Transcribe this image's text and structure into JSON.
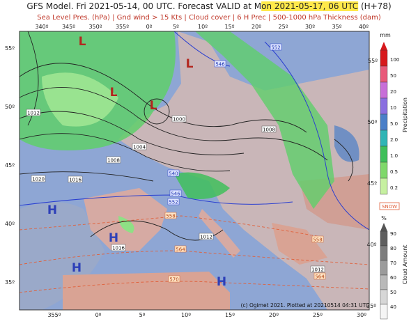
{
  "header": {
    "title_prefix": "GFS Model. Fri 2021-05-14, 00 UTC. Forecast VALID at M",
    "title_valid": "on 2021-05-17, 06 UTC",
    "title_suffix": " (H+78)",
    "subtitle": "Sea Level Pres. (hPa) | Gnd wind > 15 Kts | Cloud cover | 6 H Prec | 500-1000 hPa Thickness (dam)"
  },
  "map": {
    "top_longitudes": [
      "340º",
      "345º",
      "350º",
      "355º",
      "0º",
      "5º",
      "10º",
      "15º",
      "20º",
      "25º",
      "30º",
      "35º",
      "40º"
    ],
    "bottom_longitudes": [
      "355º",
      "0º",
      "5º",
      "10º",
      "15º",
      "20º",
      "25º",
      "30º"
    ],
    "left_latitudes": [
      "55º",
      "50º",
      "45º",
      "40º",
      "35º"
    ],
    "inner_latitudes": [
      "55º",
      "50º",
      "45º",
      "40º",
      "35º"
    ],
    "pressure_centers": [
      "L",
      "L",
      "L",
      "L",
      "H",
      "H",
      "H",
      "H"
    ],
    "isobar_labels": [
      "1012",
      "1000",
      "1004",
      "1008",
      "1020",
      "1016",
      "1016",
      "1012",
      "1008",
      "1012"
    ],
    "thickness_labels": [
      "552",
      "546",
      "540",
      "546",
      "552",
      "558",
      "564",
      "570",
      "558",
      "564"
    ]
  },
  "legend": {
    "precipitation": {
      "unit": "mm",
      "title": "Precipitation",
      "ticks": [
        "100",
        "50",
        "20",
        "10",
        "5.0",
        "2.0",
        "1.0",
        "0.5",
        "0.2"
      ]
    },
    "snow": "SNOW",
    "cloud": {
      "unit": "%",
      "title": "Cloud Amount",
      "ticks": [
        "90",
        "80",
        "70",
        "60",
        "50",
        "40"
      ]
    }
  },
  "footer": "(c) Ogimet 2021. Plotted at 20210514 04:31 UTC"
}
